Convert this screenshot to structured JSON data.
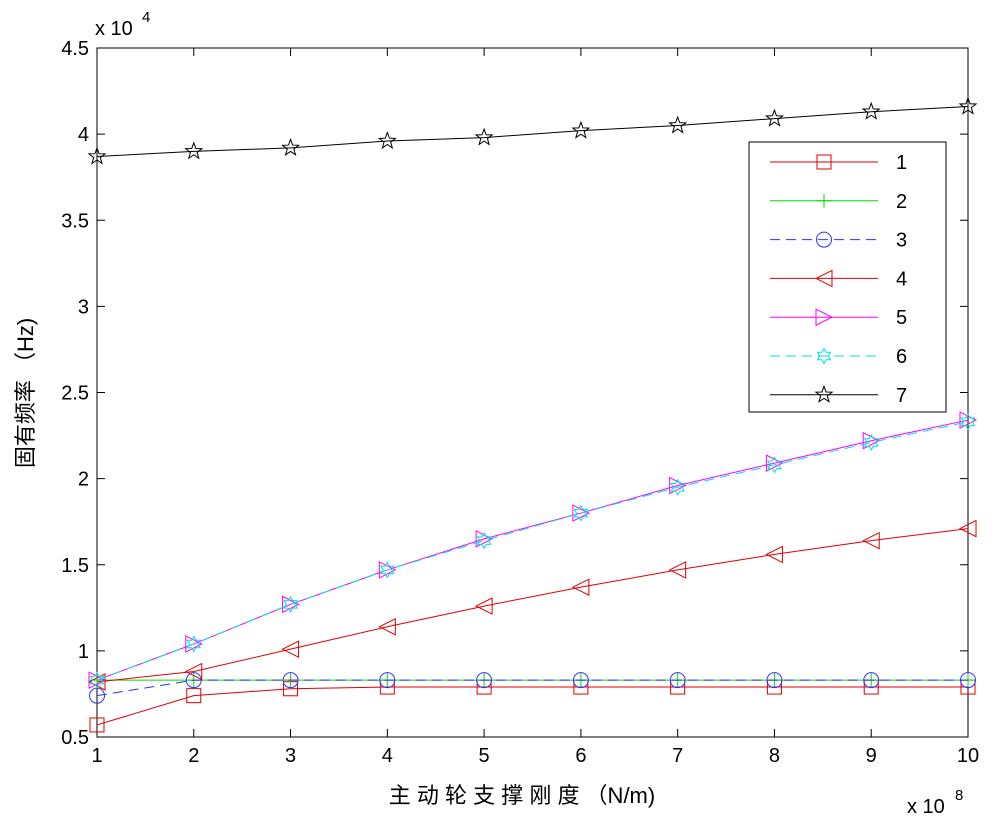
{
  "chart_data": {
    "type": "line",
    "title": "",
    "xlabel": "主 动 轮 支 撑 刚 度 （N/m)",
    "ylabel": "固有频率 （Hz)",
    "x_multiplier_label": "x 10",
    "x_multiplier_exponent": "8",
    "y_multiplier_label": "x 10",
    "y_multiplier_exponent": "4",
    "xlim": [
      1,
      10
    ],
    "ylim": [
      0.5,
      4.5
    ],
    "grid": false,
    "legend_position": "top-right",
    "x": [
      1,
      2,
      3,
      4,
      5,
      6,
      7,
      8,
      9,
      10
    ],
    "x_ticks": [
      "1",
      "2",
      "3",
      "4",
      "5",
      "6",
      "7",
      "8",
      "9",
      "10"
    ],
    "y_ticks": [
      "0.5",
      "1",
      "1.5",
      "2",
      "2.5",
      "3",
      "3.5",
      "4",
      "4.5"
    ],
    "y_tick_values": [
      0.5,
      1,
      1.5,
      2,
      2.5,
      3,
      3.5,
      4,
      4.5
    ],
    "series": [
      {
        "name": "1",
        "color": "#e00000",
        "marker": "square",
        "dash": "solid",
        "values": [
          0.57,
          0.74,
          0.78,
          0.79,
          0.79,
          0.79,
          0.79,
          0.79,
          0.79,
          0.79
        ]
      },
      {
        "name": "2",
        "color": "#00e000",
        "marker": "plus",
        "dash": "solid",
        "values": [
          0.83,
          0.83,
          0.83,
          0.83,
          0.83,
          0.83,
          0.83,
          0.83,
          0.83,
          0.83
        ]
      },
      {
        "name": "3",
        "color": "#3030ff",
        "marker": "circle",
        "dash": "dashed",
        "values": [
          0.74,
          0.83,
          0.83,
          0.83,
          0.83,
          0.83,
          0.83,
          0.83,
          0.83,
          0.83
        ]
      },
      {
        "name": "4",
        "color": "#e00000",
        "marker": "triangle-left",
        "dash": "solid",
        "values": [
          0.82,
          0.88,
          1.01,
          1.14,
          1.26,
          1.37,
          1.47,
          1.56,
          1.64,
          1.71
        ]
      },
      {
        "name": "5",
        "color": "#ff00ff",
        "marker": "triangle-right",
        "dash": "solid",
        "values": [
          0.83,
          1.04,
          1.27,
          1.47,
          1.65,
          1.8,
          1.96,
          2.09,
          2.22,
          2.34
        ]
      },
      {
        "name": "6",
        "color": "#00e0e0",
        "marker": "hexagram",
        "dash": "dashed",
        "values": [
          0.83,
          1.04,
          1.27,
          1.47,
          1.64,
          1.8,
          1.95,
          2.08,
          2.21,
          2.33
        ]
      },
      {
        "name": "7",
        "color": "#000000",
        "marker": "pentagram",
        "dash": "solid",
        "values": [
          3.87,
          3.9,
          3.92,
          3.96,
          3.98,
          4.02,
          4.05,
          4.09,
          4.13,
          4.16
        ]
      }
    ]
  }
}
